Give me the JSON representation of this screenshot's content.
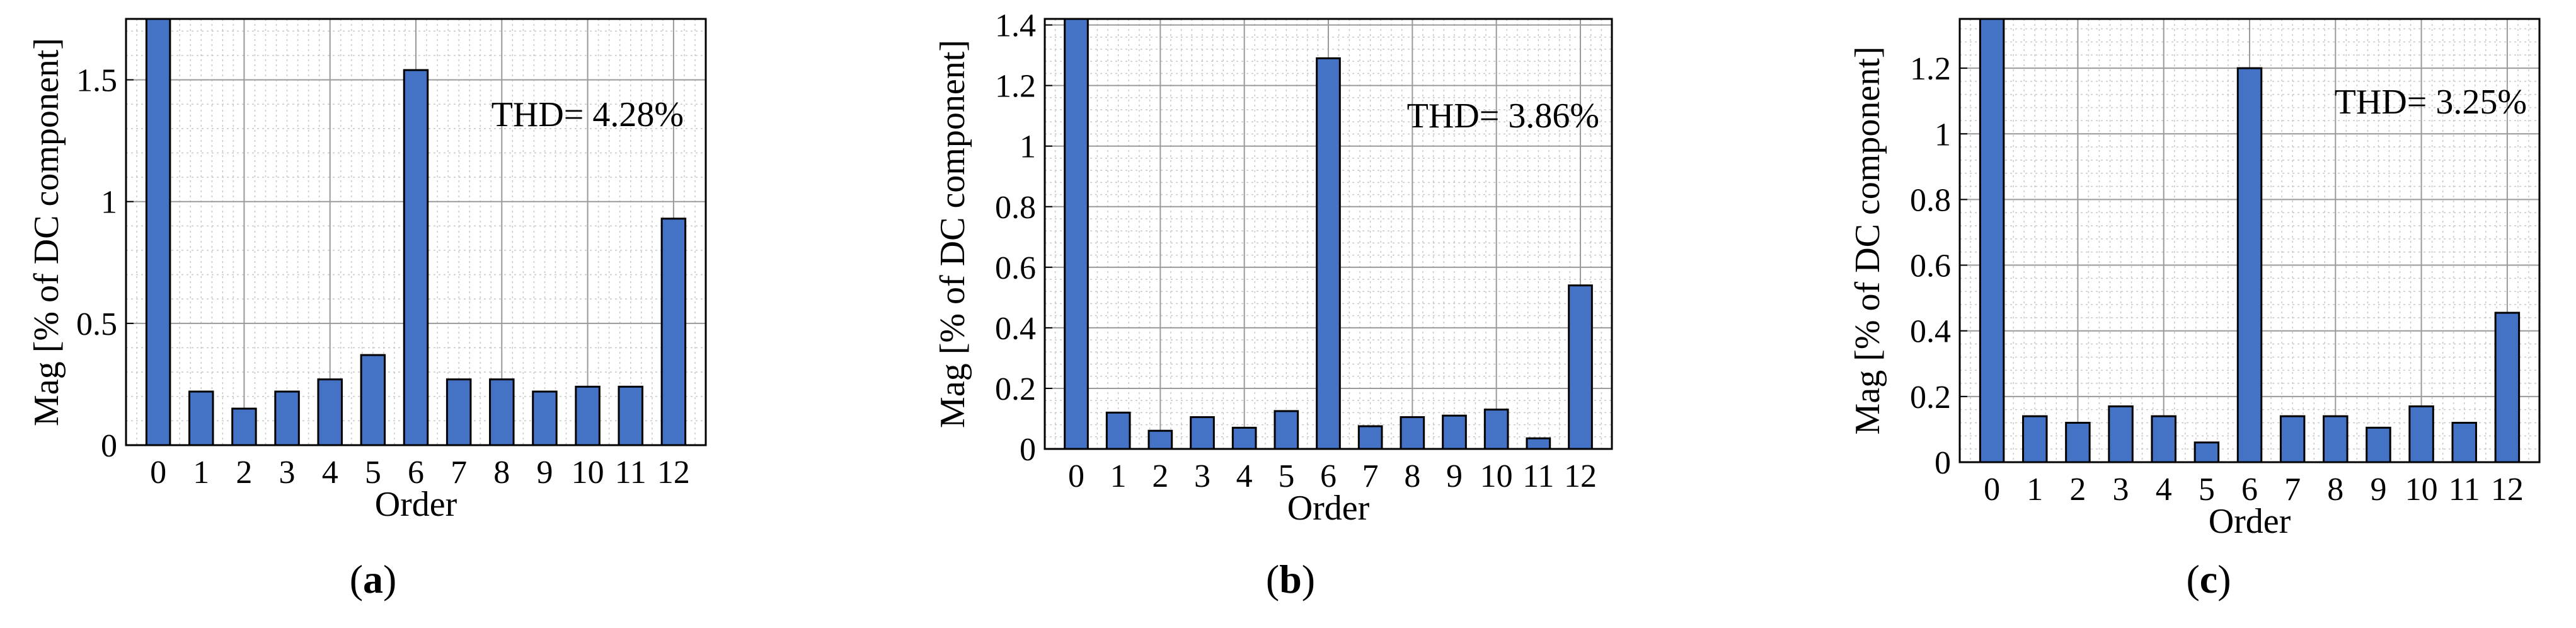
{
  "chart_data": [
    {
      "type": "bar",
      "panel_label": "a",
      "categories": [
        "0",
        "1",
        "2",
        "3",
        "4",
        "5",
        "6",
        "7",
        "8",
        "9",
        "10",
        "11",
        "12"
      ],
      "values": [
        1.8,
        0.22,
        0.15,
        0.22,
        0.27,
        0.37,
        1.54,
        0.27,
        0.27,
        0.22,
        0.24,
        0.24,
        0.93
      ],
      "xlabel": "Order",
      "ylabel": "Mag [% of DC component]",
      "ylim": [
        0,
        1.75
      ],
      "yticks": [
        0,
        0.5,
        1,
        1.5
      ],
      "ytick_labels": [
        "0",
        "0.5",
        "1",
        "1.5"
      ],
      "annotation": "THD= 4.28%",
      "grid": true,
      "bar_color": "#4472C4"
    },
    {
      "type": "bar",
      "panel_label": "b",
      "categories": [
        "0",
        "1",
        "2",
        "3",
        "4",
        "5",
        "6",
        "7",
        "8",
        "9",
        "10",
        "11",
        "12"
      ],
      "values": [
        1.45,
        0.12,
        0.06,
        0.105,
        0.07,
        0.125,
        1.29,
        0.075,
        0.105,
        0.11,
        0.13,
        0.035,
        0.54
      ],
      "xlabel": "Order",
      "ylabel": "Mag [% of DC component]",
      "ylim": [
        0,
        1.42
      ],
      "yticks": [
        0,
        0.2,
        0.4,
        0.6,
        0.8,
        1,
        1.2,
        1.4
      ],
      "ytick_labels": [
        "0",
        "0.2",
        "0.4",
        "0.6",
        "0.8",
        "1",
        "1.2",
        "1.4"
      ],
      "annotation": "THD= 3.86%",
      "grid": true,
      "bar_color": "#4472C4"
    },
    {
      "type": "bar",
      "panel_label": "c",
      "categories": [
        "0",
        "1",
        "2",
        "3",
        "4",
        "5",
        "6",
        "7",
        "8",
        "9",
        "10",
        "11",
        "12"
      ],
      "values": [
        1.4,
        0.14,
        0.12,
        0.17,
        0.14,
        0.06,
        1.2,
        0.14,
        0.14,
        0.105,
        0.17,
        0.12,
        0.455
      ],
      "xlabel": "Order",
      "ylabel": "Mag [% of DC component]",
      "ylim": [
        0,
        1.35
      ],
      "yticks": [
        0,
        0.2,
        0.4,
        0.6,
        0.8,
        1,
        1.2
      ],
      "ytick_labels": [
        "0",
        "0.2",
        "0.4",
        "0.6",
        "0.8",
        "1",
        "1.2"
      ],
      "annotation": "THD= 3.25%",
      "grid": true,
      "bar_color": "#4472C4"
    }
  ]
}
